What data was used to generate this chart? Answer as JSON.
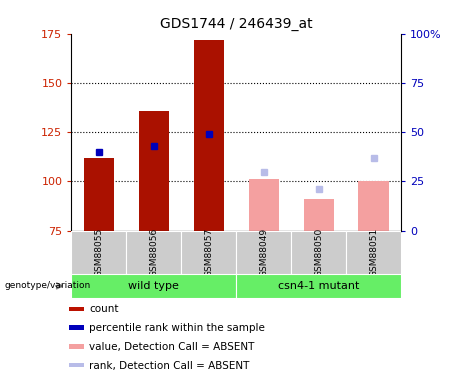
{
  "title": "GDS1744 / 246439_at",
  "samples": [
    "GSM88055",
    "GSM88056",
    "GSM88057",
    "GSM88049",
    "GSM88050",
    "GSM88051"
  ],
  "ylim": [
    75,
    175
  ],
  "ylim_right": [
    0,
    100
  ],
  "yticks_left": [
    75,
    100,
    125,
    150,
    175
  ],
  "yticks_right": [
    0,
    25,
    50,
    75,
    100
  ],
  "bar_values": [
    112,
    136,
    172,
    null,
    null,
    null
  ],
  "bar_color_present": "#aa1100",
  "bar_color_absent": "#f4a0a0",
  "blue_marker_values": [
    115,
    118,
    124,
    null,
    null,
    null
  ],
  "absent_bar_values": [
    null,
    null,
    null,
    101,
    91,
    100
  ],
  "absent_rank_values": [
    null,
    null,
    null,
    105,
    96,
    112
  ],
  "legend_items": [
    {
      "label": "count",
      "color": "#bb1100"
    },
    {
      "label": "percentile rank within the sample",
      "color": "#0000bb"
    },
    {
      "label": "value, Detection Call = ABSENT",
      "color": "#f4a0a0"
    },
    {
      "label": "rank, Detection Call = ABSENT",
      "color": "#b8bce8"
    }
  ],
  "group_color": "#66ee66",
  "sample_bg_color": "#cccccc",
  "title_fontsize": 10,
  "tick_fontsize": 8,
  "label_fontsize": 8,
  "legend_fontsize": 7.5
}
